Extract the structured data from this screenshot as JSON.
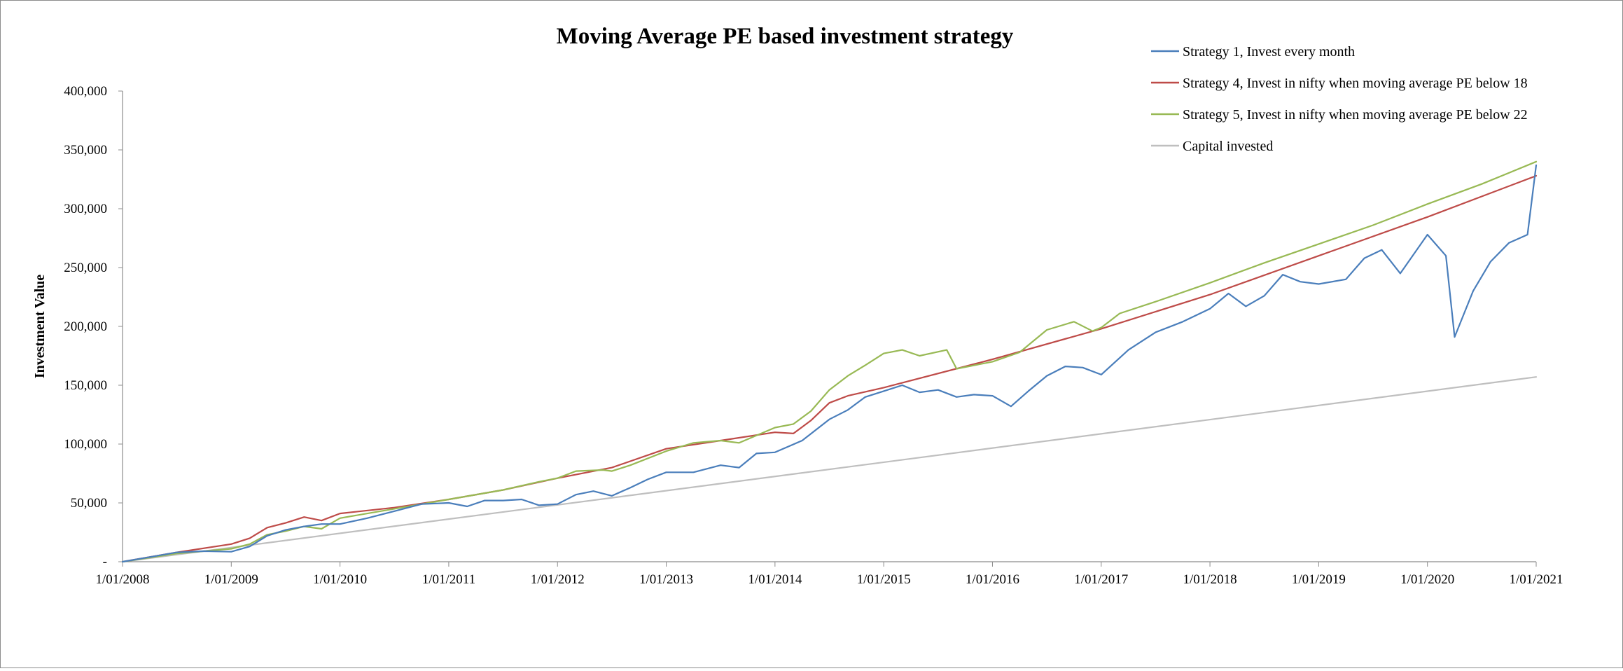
{
  "chart_data": {
    "type": "line",
    "title": "Moving Average PE based investment strategy",
    "xlabel": "",
    "ylabel": "Investment Value",
    "ylim": [
      0,
      400000
    ],
    "yticks": [
      0,
      50000,
      100000,
      150000,
      200000,
      250000,
      300000,
      350000,
      400000
    ],
    "ytick_labels": [
      "-",
      "50,000",
      "100,000",
      "150,000",
      "200,000",
      "250,000",
      "300,000",
      "350,000",
      "400,000"
    ],
    "xlim": [
      2008,
      2021
    ],
    "xticks": [
      2008,
      2009,
      2010,
      2011,
      2012,
      2013,
      2014,
      2015,
      2016,
      2017,
      2018,
      2019,
      2020,
      2021
    ],
    "xtick_labels": [
      "1/01/2008",
      "1/01/2009",
      "1/01/2010",
      "1/01/2011",
      "1/01/2012",
      "1/01/2013",
      "1/01/2014",
      "1/01/2015",
      "1/01/2016",
      "1/01/2017",
      "1/01/2018",
      "1/01/2019",
      "1/01/2020",
      "1/01/2021"
    ],
    "grid": false,
    "legend_position": "top-right",
    "series": [
      {
        "name": "Strategy 1, Invest every month",
        "color": "#4a7ebb",
        "x": [
          2008.0,
          2008.25,
          2008.5,
          2008.75,
          2009.0,
          2009.17,
          2009.33,
          2009.5,
          2009.67,
          2009.83,
          2010.0,
          2010.25,
          2010.5,
          2010.75,
          2011.0,
          2011.17,
          2011.33,
          2011.5,
          2011.67,
          2011.83,
          2012.0,
          2012.17,
          2012.33,
          2012.5,
          2012.67,
          2012.83,
          2013.0,
          2013.25,
          2013.5,
          2013.67,
          2013.83,
          2014.0,
          2014.25,
          2014.5,
          2014.67,
          2014.83,
          2015.0,
          2015.17,
          2015.33,
          2015.5,
          2015.67,
          2015.83,
          2016.0,
          2016.17,
          2016.33,
          2016.5,
          2016.67,
          2016.83,
          2017.0,
          2017.25,
          2017.5,
          2017.75,
          2018.0,
          2018.17,
          2018.33,
          2018.5,
          2018.67,
          2018.83,
          2019.0,
          2019.25,
          2019.42,
          2019.58,
          2019.75,
          2020.0,
          2020.17,
          2020.25,
          2020.42,
          2020.58,
          2020.75,
          2020.92,
          2021.0
        ],
        "y": [
          0,
          4000,
          8000,
          9000,
          8500,
          13000,
          22000,
          27000,
          30000,
          32000,
          32000,
          37000,
          43000,
          49000,
          50000,
          47000,
          52000,
          52000,
          53000,
          48000,
          49000,
          57000,
          60000,
          56000,
          63000,
          70000,
          76000,
          76000,
          82000,
          80000,
          92000,
          93000,
          103000,
          121000,
          129000,
          140000,
          145000,
          150000,
          144000,
          146000,
          140000,
          142000,
          141000,
          132000,
          145000,
          158000,
          166000,
          165000,
          159000,
          180000,
          195000,
          204000,
          215000,
          228000,
          217000,
          226000,
          244000,
          238000,
          236000,
          240000,
          258000,
          265000,
          245000,
          278000,
          260000,
          191000,
          230000,
          255000,
          271000,
          278000,
          337000
        ]
      },
      {
        "name": "Strategy 4, Invest in nifty when moving average PE below 18",
        "color": "#be4b48",
        "x": [
          2008.0,
          2008.5,
          2009.0,
          2009.17,
          2009.33,
          2009.5,
          2009.67,
          2009.83,
          2010.0,
          2010.5,
          2011.0,
          2011.5,
          2012.0,
          2012.5,
          2013.0,
          2013.5,
          2014.0,
          2014.17,
          2014.33,
          2014.5,
          2014.67,
          2015.0,
          2016.0,
          2017.0,
          2018.0,
          2019.0,
          2020.0,
          2021.0
        ],
        "y": [
          0,
          8000,
          15000,
          20000,
          29000,
          33000,
          38000,
          35000,
          41000,
          46000,
          53000,
          61000,
          71000,
          80000,
          96000,
          103000,
          110000,
          109000,
          120000,
          135000,
          141000,
          148000,
          172000,
          198000,
          227000,
          260000,
          293000,
          328000
        ]
      },
      {
        "name": "Strategy 5, Invest in nifty when moving average PE below 22",
        "color": "#98b954",
        "x": [
          2008.0,
          2008.5,
          2009.0,
          2009.17,
          2009.33,
          2009.5,
          2009.67,
          2009.83,
          2010.0,
          2010.5,
          2011.0,
          2011.5,
          2011.83,
          2012.0,
          2012.17,
          2012.42,
          2012.5,
          2012.67,
          2013.0,
          2013.25,
          2013.5,
          2013.67,
          2014.0,
          2014.17,
          2014.33,
          2014.5,
          2014.67,
          2014.83,
          2015.0,
          2015.17,
          2015.33,
          2015.58,
          2015.67,
          2016.0,
          2016.25,
          2016.5,
          2016.75,
          2016.92,
          2017.0,
          2017.17,
          2017.5,
          2018.0,
          2018.5,
          2019.0,
          2019.5,
          2020.0,
          2020.5,
          2021.0
        ],
        "y": [
          0,
          7000,
          11000,
          15000,
          23000,
          26000,
          30000,
          28000,
          37000,
          45000,
          53000,
          61000,
          68000,
          71000,
          77000,
          78000,
          77000,
          82000,
          94000,
          101000,
          103000,
          101000,
          114000,
          117000,
          128000,
          146000,
          158000,
          167000,
          177000,
          180000,
          175000,
          180000,
          164000,
          170000,
          178000,
          197000,
          204000,
          196000,
          199000,
          211000,
          221000,
          237000,
          254000,
          270000,
          286000,
          304000,
          321000,
          340000
        ]
      },
      {
        "name": "Capital invested",
        "color": "#bfbfbf",
        "x": [
          2008.0,
          2021.0
        ],
        "y": [
          0,
          157000
        ]
      }
    ]
  }
}
